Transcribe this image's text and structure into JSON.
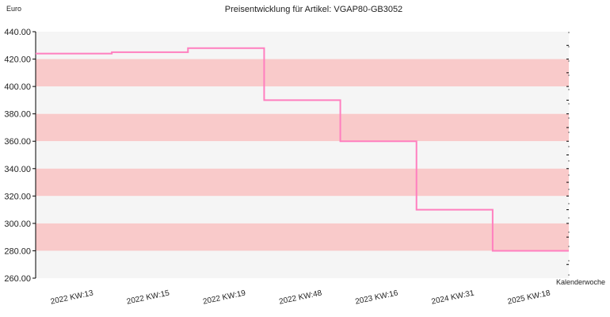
{
  "chart_data": {
    "type": "line",
    "title": "Preisentwicklung für Artikel: VGAP80-GB3052",
    "ylabel": "Euro",
    "xlabel": "Kalenderwoche",
    "ylim": [
      260,
      440
    ],
    "yticks": [
      "260.00",
      "280.00",
      "300.00",
      "320.00",
      "340.00",
      "360.00",
      "380.00",
      "400.00",
      "420.00",
      "440.00"
    ],
    "categories": [
      "2022 KW:13",
      "2022 KW:15",
      "2022 KW:19",
      "2022 KW:48",
      "2023 KW:16",
      "2024 KW:31",
      "2025 KW:18"
    ],
    "series": [
      {
        "values": [
          424,
          425,
          428,
          390,
          360,
          310,
          280
        ]
      }
    ],
    "step": true,
    "grid": "horizontal bands",
    "colors": {
      "line": "#ff7fbf",
      "band_dark": "#f9caca",
      "band_light": "#f5f5f5",
      "axis": "#000000"
    }
  }
}
